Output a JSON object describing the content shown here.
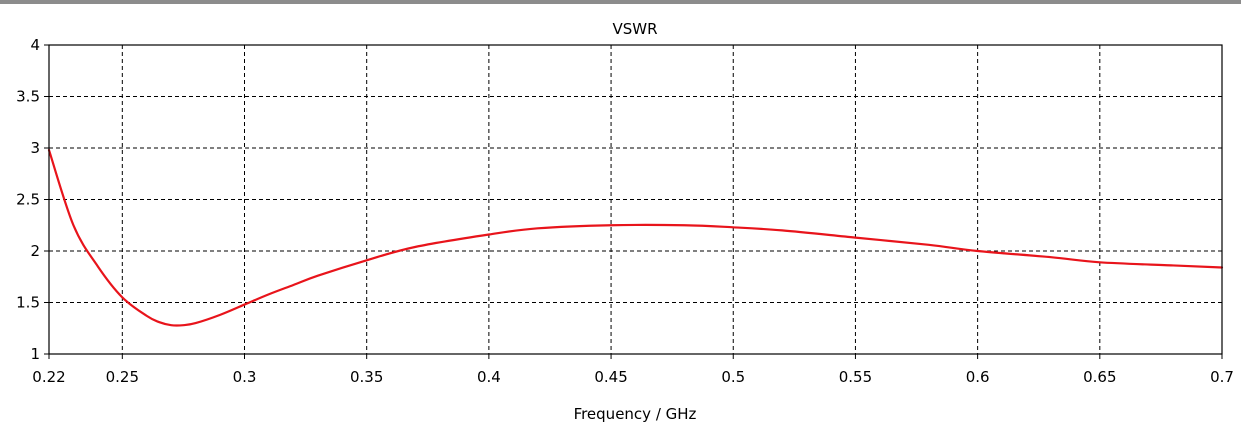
{
  "chart_data": {
    "type": "line",
    "title": "VSWR",
    "xlabel": "Frequency / GHz",
    "ylabel": "",
    "xlim": [
      0.22,
      0.7
    ],
    "ylim": [
      1,
      4
    ],
    "grid": true,
    "x_ticks": [
      0.22,
      0.25,
      0.3,
      0.35,
      0.4,
      0.45,
      0.5,
      0.55,
      0.6,
      0.65,
      0.7
    ],
    "x_tick_labels": [
      "0.22",
      "0.25",
      "0.3",
      "0.35",
      "0.4",
      "0.45",
      "0.5",
      "0.55",
      "0.6",
      "0.65",
      "0.7"
    ],
    "y_ticks": [
      1,
      1.5,
      2,
      2.5,
      3,
      3.5,
      4
    ],
    "y_tick_labels": [
      "1",
      "1.5",
      "2",
      "2.5",
      "3",
      "3.5",
      "4"
    ],
    "series": [
      {
        "color": "#e8141b",
        "x": [
          0.22,
          0.23,
          0.24,
          0.25,
          0.26,
          0.265,
          0.27,
          0.275,
          0.28,
          0.29,
          0.3,
          0.31,
          0.32,
          0.33,
          0.35,
          0.37,
          0.4,
          0.42,
          0.45,
          0.48,
          0.5,
          0.52,
          0.55,
          0.58,
          0.6,
          0.63,
          0.65,
          0.68,
          0.7
        ],
        "y": [
          2.98,
          2.25,
          1.85,
          1.55,
          1.37,
          1.31,
          1.28,
          1.28,
          1.3,
          1.38,
          1.48,
          1.58,
          1.67,
          1.76,
          1.91,
          2.04,
          2.16,
          2.22,
          2.25,
          2.25,
          2.23,
          2.2,
          2.13,
          2.06,
          2.0,
          1.94,
          1.89,
          1.86,
          1.84
        ]
      }
    ]
  }
}
